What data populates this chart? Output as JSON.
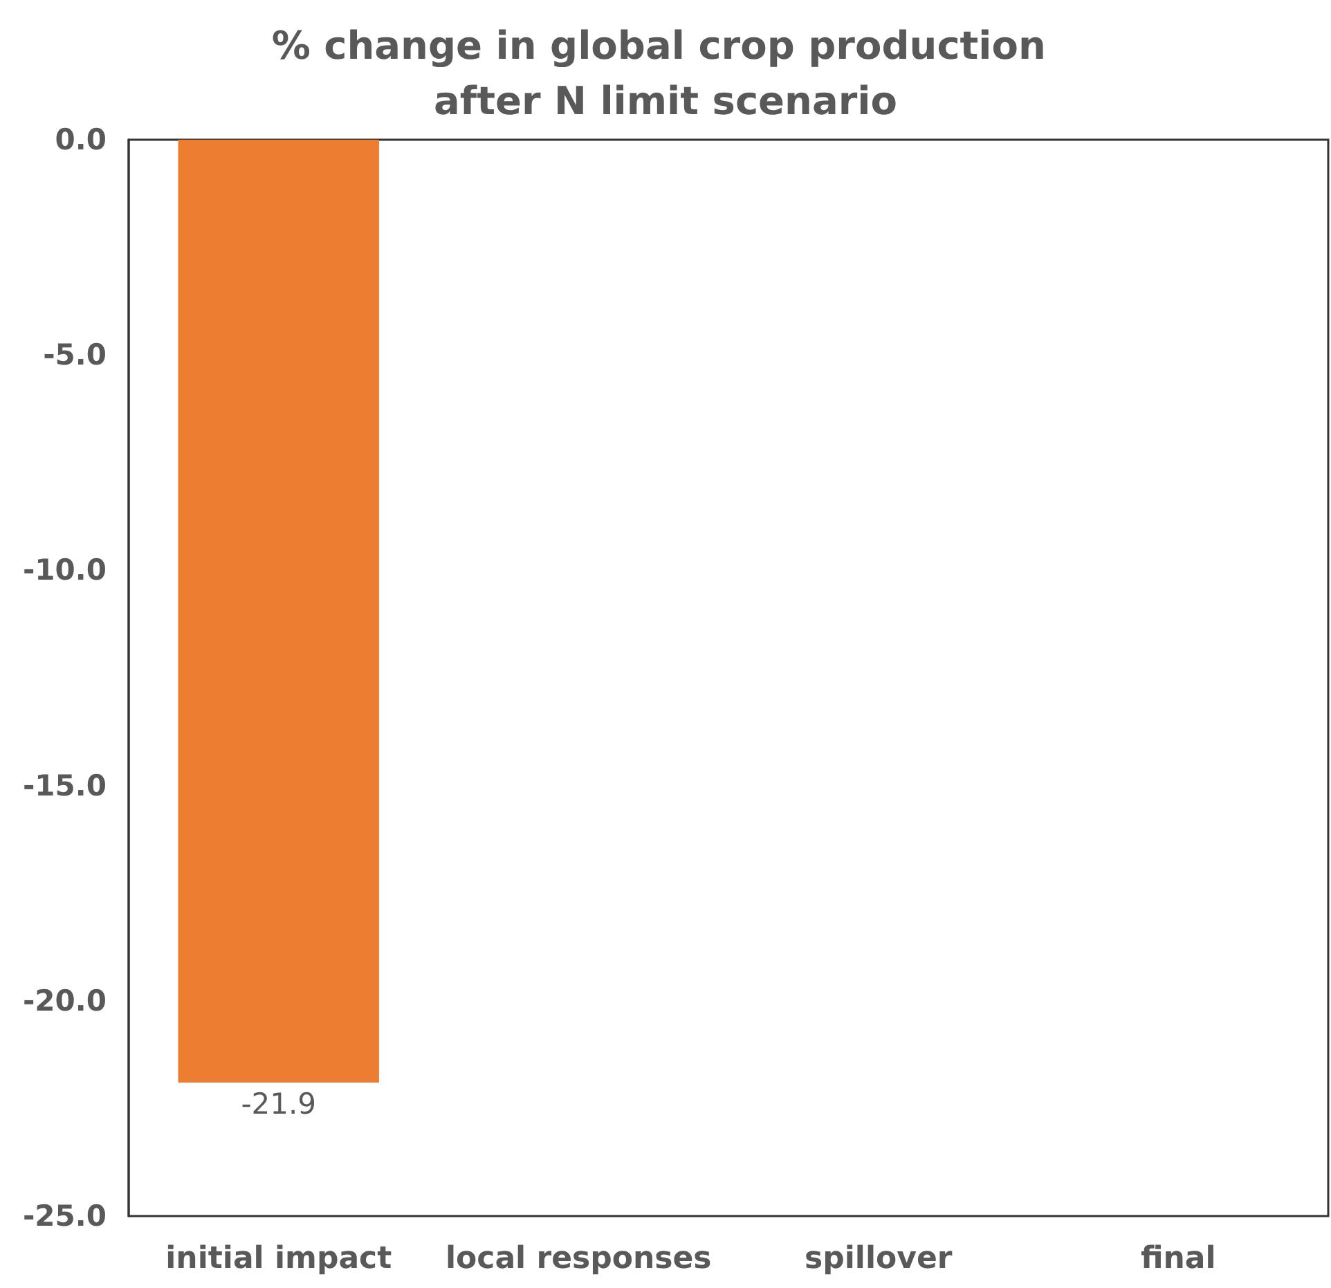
{
  "chart_data": {
    "type": "bar",
    "title": "% change in global crop production after N limit scenario",
    "categories": [
      "initial impact",
      "local responses",
      "spillover",
      "final"
    ],
    "values": [
      -21.9,
      null,
      null,
      null
    ],
    "color": "#ed7d31",
    "ylim": [
      -25,
      0
    ],
    "yticks": [
      {
        "value": -25,
        "label": "-25.0"
      },
      {
        "value": -20,
        "label": "-20.0"
      },
      {
        "value": -15,
        "label": "-15.0"
      },
      {
        "value": -10,
        "label": "-10.0"
      },
      {
        "value": -5,
        "label": "-5.0"
      },
      {
        "value": 0,
        "label": "0.0"
      }
    ],
    "data_labels": true,
    "grid": false
  }
}
